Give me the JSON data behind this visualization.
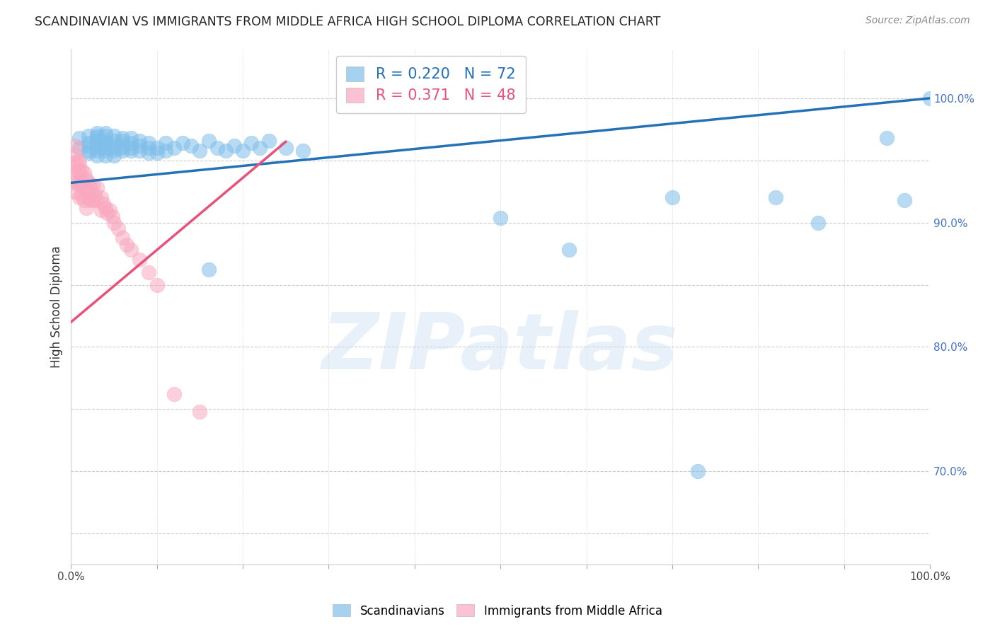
{
  "title": "SCANDINAVIAN VS IMMIGRANTS FROM MIDDLE AFRICA HIGH SCHOOL DIPLOMA CORRELATION CHART",
  "source": "Source: ZipAtlas.com",
  "ylabel": "High School Diploma",
  "xlim": [
    0.0,
    1.0
  ],
  "ylim": [
    0.625,
    1.04
  ],
  "xtick_positions": [
    0.0,
    0.1,
    0.2,
    0.3,
    0.4,
    0.5,
    0.6,
    0.7,
    0.8,
    0.9,
    1.0
  ],
  "xticklabels": [
    "0.0%",
    "",
    "",
    "",
    "",
    "",
    "",
    "",
    "",
    "",
    "100.0%"
  ],
  "ytick_positions": [
    0.65,
    0.7,
    0.75,
    0.8,
    0.85,
    0.9,
    0.95,
    1.0
  ],
  "ytick_labels": [
    "",
    "70.0%",
    "",
    "80.0%",
    "",
    "90.0%",
    "",
    "100.0%"
  ],
  "R_blue": 0.22,
  "N_blue": 72,
  "R_pink": 0.371,
  "N_pink": 48,
  "legend_label_blue": "Scandinavians",
  "legend_label_pink": "Immigrants from Middle Africa",
  "watermark_text": "ZIPatlas",
  "blue_scatter_color": "#7fbfea",
  "pink_scatter_color": "#f9a8c0",
  "blue_line_color": "#2471b5",
  "pink_line_color": "#e8527a",
  "blue_line_start_x": 0.0,
  "blue_line_end_x": 1.0,
  "blue_line_start_y": 0.932,
  "blue_line_end_y": 1.0,
  "pink_line_start_x": 0.0,
  "pink_line_end_x": 0.25,
  "pink_line_start_y": 0.82,
  "pink_line_end_y": 0.965,
  "scatter_blue_x": [
    0.01,
    0.01,
    0.02,
    0.02,
    0.02,
    0.02,
    0.02,
    0.03,
    0.03,
    0.03,
    0.03,
    0.03,
    0.03,
    0.03,
    0.03,
    0.04,
    0.04,
    0.04,
    0.04,
    0.04,
    0.04,
    0.04,
    0.04,
    0.05,
    0.05,
    0.05,
    0.05,
    0.05,
    0.05,
    0.06,
    0.06,
    0.06,
    0.06,
    0.06,
    0.07,
    0.07,
    0.07,
    0.07,
    0.08,
    0.08,
    0.08,
    0.09,
    0.09,
    0.09,
    0.1,
    0.1,
    0.11,
    0.11,
    0.12,
    0.13,
    0.14,
    0.15,
    0.16,
    0.17,
    0.18,
    0.19,
    0.2,
    0.21,
    0.22,
    0.23,
    0.25,
    0.27,
    0.5,
    0.58,
    0.7,
    0.73,
    0.82,
    0.87,
    0.95,
    0.97,
    1.0,
    0.16
  ],
  "scatter_blue_y": [
    0.96,
    0.968,
    0.958,
    0.964,
    0.97,
    0.962,
    0.956,
    0.966,
    0.97,
    0.962,
    0.958,
    0.954,
    0.972,
    0.96,
    0.968,
    0.964,
    0.972,
    0.96,
    0.958,
    0.966,
    0.954,
    0.97,
    0.962,
    0.962,
    0.958,
    0.966,
    0.96,
    0.954,
    0.97,
    0.966,
    0.96,
    0.958,
    0.962,
    0.968,
    0.958,
    0.964,
    0.96,
    0.968,
    0.962,
    0.958,
    0.966,
    0.96,
    0.956,
    0.964,
    0.96,
    0.956,
    0.958,
    0.964,
    0.96,
    0.964,
    0.962,
    0.958,
    0.966,
    0.96,
    0.958,
    0.962,
    0.958,
    0.964,
    0.96,
    0.966,
    0.96,
    0.958,
    0.904,
    0.878,
    0.92,
    0.7,
    0.92,
    0.9,
    0.968,
    0.918,
    1.0,
    0.862
  ],
  "scatter_pink_x": [
    0.005,
    0.005,
    0.005,
    0.005,
    0.005,
    0.005,
    0.008,
    0.008,
    0.008,
    0.01,
    0.01,
    0.01,
    0.01,
    0.012,
    0.012,
    0.012,
    0.015,
    0.015,
    0.015,
    0.018,
    0.018,
    0.018,
    0.02,
    0.02,
    0.022,
    0.022,
    0.025,
    0.025,
    0.028,
    0.03,
    0.03,
    0.035,
    0.035,
    0.038,
    0.04,
    0.042,
    0.045,
    0.048,
    0.05,
    0.055,
    0.06,
    0.065,
    0.07,
    0.08,
    0.09,
    0.1,
    0.12,
    0.15
  ],
  "scatter_pink_y": [
    0.962,
    0.955,
    0.948,
    0.94,
    0.932,
    0.925,
    0.95,
    0.942,
    0.932,
    0.948,
    0.94,
    0.93,
    0.92,
    0.942,
    0.932,
    0.922,
    0.94,
    0.928,
    0.918,
    0.935,
    0.925,
    0.912,
    0.932,
    0.92,
    0.928,
    0.918,
    0.93,
    0.918,
    0.922,
    0.928,
    0.918,
    0.92,
    0.91,
    0.915,
    0.912,
    0.908,
    0.91,
    0.905,
    0.9,
    0.895,
    0.888,
    0.882,
    0.878,
    0.87,
    0.86,
    0.85,
    0.762,
    0.748
  ]
}
